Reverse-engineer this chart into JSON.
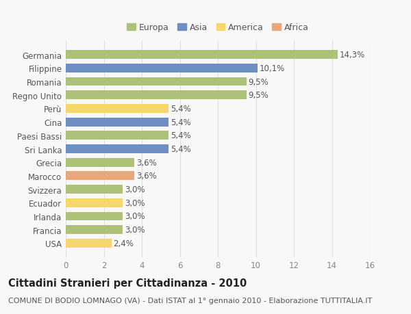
{
  "categories": [
    "Germania",
    "Filippine",
    "Romania",
    "Regno Unito",
    "Perù",
    "Cina",
    "Paesi Bassi",
    "Sri Lanka",
    "Grecia",
    "Marocco",
    "Svizzera",
    "Ecuador",
    "Irlanda",
    "Francia",
    "USA"
  ],
  "values": [
    14.3,
    10.1,
    9.5,
    9.5,
    5.4,
    5.4,
    5.4,
    5.4,
    3.6,
    3.6,
    3.0,
    3.0,
    3.0,
    3.0,
    2.4
  ],
  "labels": [
    "14,3%",
    "10,1%",
    "9,5%",
    "9,5%",
    "5,4%",
    "5,4%",
    "5,4%",
    "5,4%",
    "3,6%",
    "3,6%",
    "3,0%",
    "3,0%",
    "3,0%",
    "3,0%",
    "2,4%"
  ],
  "continents": [
    "Europa",
    "Asia",
    "Europa",
    "Europa",
    "America",
    "Asia",
    "Europa",
    "Asia",
    "Europa",
    "Africa",
    "Europa",
    "America",
    "Europa",
    "Europa",
    "America"
  ],
  "colors": {
    "Europa": "#adc178",
    "Asia": "#6e8fc4",
    "America": "#f5d76e",
    "Africa": "#e8a87c"
  },
  "title": "Cittadini Stranieri per Cittadinanza - 2010",
  "subtitle": "COMUNE DI BODIO LOMNAGO (VA) - Dati ISTAT al 1° gennaio 2010 - Elaborazione TUTTITALIA.IT",
  "xlim": [
    0,
    16
  ],
  "xticks": [
    0,
    2,
    4,
    6,
    8,
    10,
    12,
    14,
    16
  ],
  "background_color": "#f8f8f8",
  "grid_color": "#e0e0e0",
  "bar_height": 0.65,
  "title_fontsize": 10.5,
  "subtitle_fontsize": 8,
  "tick_fontsize": 8.5,
  "label_fontsize": 8.5,
  "legend_fontsize": 9
}
